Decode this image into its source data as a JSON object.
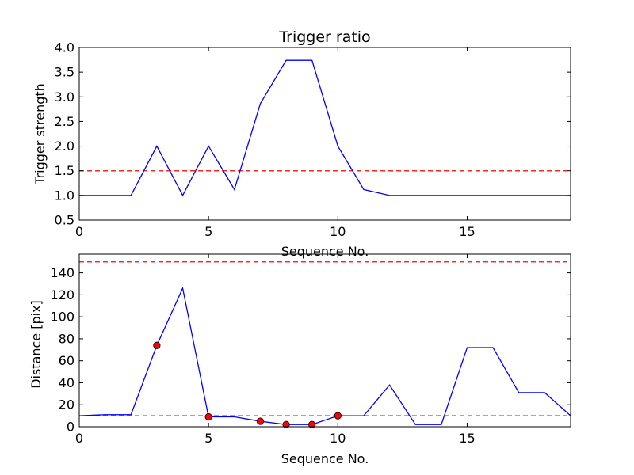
{
  "chart_data": [
    {
      "type": "line",
      "title": "Trigger ratio",
      "xlabel": "Sequence No.",
      "ylabel": "Trigger strength",
      "xlim": [
        0,
        19
      ],
      "ylim": [
        0.5,
        4.0
      ],
      "xticks": [
        0,
        5,
        10,
        15
      ],
      "xtick_labels": [
        "0",
        "5",
        "10",
        "15"
      ],
      "yticks": [
        0.5,
        1.0,
        1.5,
        2.0,
        2.5,
        3.0,
        3.5,
        4.0
      ],
      "ytick_labels": [
        "0.5",
        "1.0",
        "1.5",
        "2.0",
        "2.5",
        "3.0",
        "3.5",
        "4.0"
      ],
      "grid": false,
      "series": [
        {
          "color": "#0000ff",
          "style": "solid",
          "x": [
            0,
            1,
            2,
            3,
            4,
            5,
            6,
            7,
            8,
            9,
            10,
            11,
            12,
            13,
            14,
            15,
            16,
            17,
            18,
            19
          ],
          "y": [
            1.0,
            1.0,
            1.0,
            2.0,
            1.0,
            2.0,
            1.12,
            2.86,
            3.74,
            3.74,
            2.0,
            1.12,
            1.0,
            1.0,
            1.0,
            1.0,
            1.0,
            1.0,
            1.0,
            1.0
          ]
        }
      ],
      "hlines": [
        {
          "y": 1.5,
          "color": "#ff0000",
          "style": "dashed"
        }
      ]
    },
    {
      "type": "line",
      "title": "",
      "xlabel": "Sequence No.",
      "ylabel": "Distance [pix]",
      "xlim": [
        0,
        19
      ],
      "ylim": [
        0,
        157
      ],
      "xticks": [
        0,
        5,
        10,
        15
      ],
      "xtick_labels": [
        "0",
        "5",
        "10",
        "15"
      ],
      "yticks": [
        0,
        20,
        40,
        60,
        80,
        100,
        120,
        140
      ],
      "ytick_labels": [
        "0",
        "20",
        "40",
        "60",
        "80",
        "100",
        "120",
        "140"
      ],
      "grid": false,
      "series": [
        {
          "color": "#0000ff",
          "style": "solid",
          "x": [
            0,
            1,
            2,
            3,
            4,
            5,
            6,
            7,
            8,
            9,
            10,
            11,
            12,
            13,
            14,
            15,
            16,
            17,
            18,
            19
          ],
          "y": [
            10,
            11,
            11,
            74,
            126,
            9,
            9,
            5,
            2,
            2,
            10,
            10,
            38,
            2,
            2,
            72,
            72,
            31,
            31,
            10
          ]
        }
      ],
      "markers": {
        "color": "#ff0000",
        "x": [
          3,
          5,
          7,
          8,
          9,
          10
        ],
        "y": [
          74,
          9,
          5,
          2,
          2,
          10
        ]
      },
      "hlines": [
        {
          "y": 150,
          "color": "#ff0000",
          "style": "dashed"
        },
        {
          "y": 10,
          "color": "#ff0000",
          "style": "dashed"
        }
      ]
    }
  ]
}
